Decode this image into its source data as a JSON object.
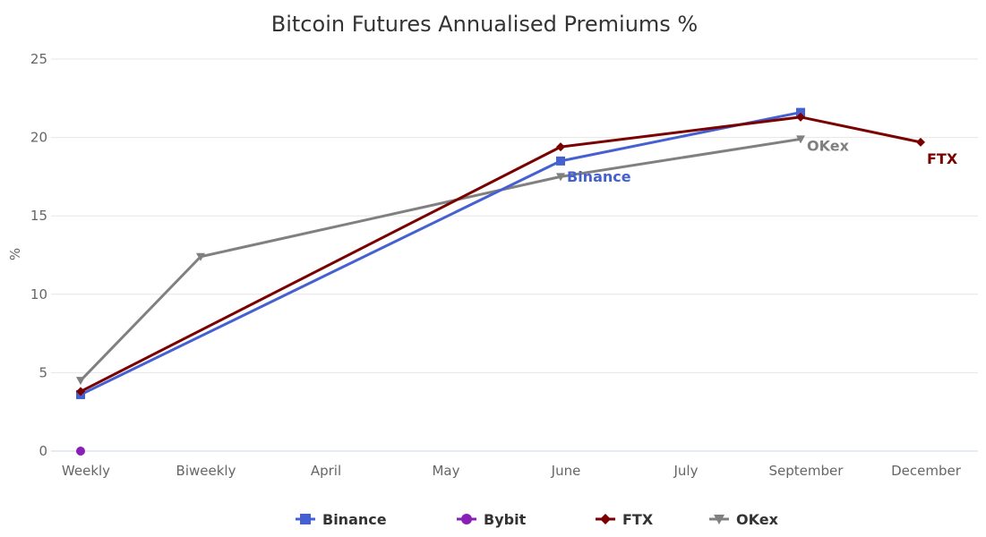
{
  "chart_data": {
    "type": "line",
    "title": "Bitcoin Futures Annualised Premiums %",
    "ylabel": "%",
    "xlabel": "",
    "ylim": [
      0,
      25
    ],
    "yticks": [
      0,
      5,
      10,
      15,
      20,
      25
    ],
    "categories": [
      "Weekly",
      "Biweekly",
      "April",
      "May",
      "June",
      "July",
      "September",
      "December"
    ],
    "grid": true,
    "legend_position": "bottom-center",
    "series": [
      {
        "name": "Binance",
        "color": "#4560d0",
        "marker": "square",
        "values": [
          3.6,
          null,
          null,
          null,
          18.5,
          null,
          21.6,
          null
        ],
        "end_label": "Binance"
      },
      {
        "name": "Bybit",
        "color": "#8a1fb8",
        "marker": "circle",
        "values": [
          0,
          null,
          null,
          null,
          null,
          null,
          null,
          null
        ],
        "end_label": ""
      },
      {
        "name": "FTX",
        "color": "#7a0000",
        "marker": "diamond",
        "values": [
          3.8,
          null,
          null,
          null,
          19.4,
          null,
          21.3,
          19.7
        ],
        "end_label": "FTX"
      },
      {
        "name": "OKex",
        "color": "#808080",
        "marker": "triangle-down",
        "values": [
          4.5,
          12.4,
          null,
          null,
          17.5,
          null,
          19.9,
          null
        ],
        "end_label": "OKex"
      }
    ]
  }
}
